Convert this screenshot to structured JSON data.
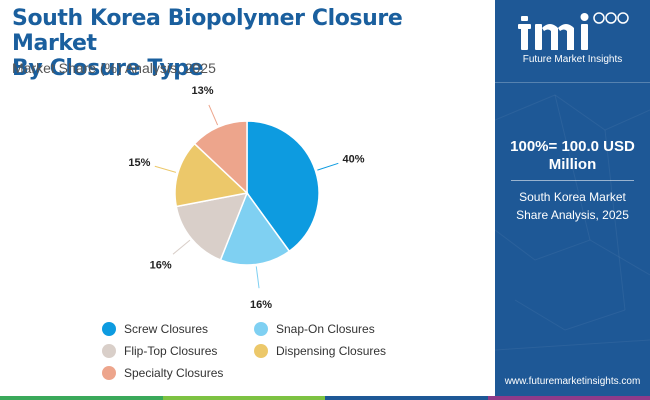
{
  "header": {
    "title_line1": "South Korea Biopolymer Closure Market",
    "title_line2": "By Closure Type",
    "subtitle": "Market Share (%) Analysis, 2025"
  },
  "chart_data": {
    "type": "pie",
    "title": "South Korea Biopolymer Closure Market By Closure Type",
    "subtitle": "Market Share (%) Analysis, 2025",
    "unit": "%",
    "start": "12 o'clock, clockwise",
    "legend_position": "bottom",
    "slices": [
      {
        "name": "Screw Closures",
        "value": 40,
        "label": "40%",
        "color": "#0d9be0"
      },
      {
        "name": "Snap-On Closures",
        "value": 16,
        "label": "16%",
        "color": "#7fd0f2"
      },
      {
        "name": "Flip-Top Closures",
        "value": 16,
        "label": "16%",
        "color": "#d9cfc9"
      },
      {
        "name": "Dispensing Closures",
        "value": 15,
        "label": "15%",
        "color": "#ecc86a"
      },
      {
        "name": "Specialty Closures",
        "value": 13,
        "label": "13%",
        "color": "#eda58c"
      }
    ]
  },
  "legend_rows": [
    [
      "Screw Closures",
      "Snap-On Closures"
    ],
    [
      "Flip-Top Closures",
      "Dispensing Closures"
    ],
    [
      "Specialty Closures"
    ]
  ],
  "panel": {
    "logo_text": "Future Market Insights",
    "headline_line1": "100%= 100.0 USD",
    "headline_line2": "Million",
    "desc_line1": "South Korea Market",
    "desc_line2": "Share Analysis, 2025",
    "website": "www.futuremarketinsights.com",
    "background_color": "#1e5896"
  },
  "bottom_bar_colors": [
    "#3aa95a",
    "#7dc242",
    "#1e5896",
    "#8e3b8a"
  ]
}
